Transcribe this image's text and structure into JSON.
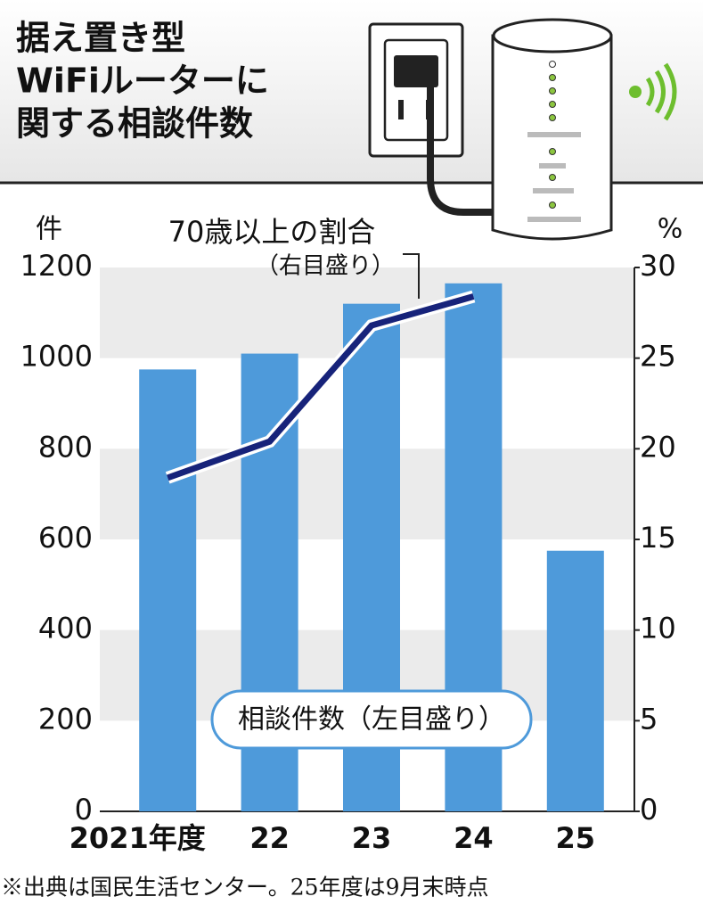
{
  "chart_data": {
    "type": "combo",
    "title": [
      "据え置き型",
      "WiFiルーターに",
      "関する相談件数"
    ],
    "y_unit": "件",
    "y2_unit": "%",
    "categories": [
      "2021年度",
      "22",
      "23",
      "24",
      "25"
    ],
    "series": [
      {
        "name": "相談件数（左目盛り）",
        "type": "bar",
        "color": "#4e9ada",
        "values": [
          975,
          1010,
          1120,
          1165,
          575
        ]
      },
      {
        "name": "70歳以上の割合",
        "type": "line",
        "axis": "y2",
        "color": "#17237a",
        "values": [
          18.4,
          20.4,
          26.8,
          28.4,
          null
        ]
      }
    ],
    "line_note": "（右目盛り）",
    "ylim": [
      0,
      1200
    ],
    "yticks": [
      0,
      200,
      400,
      600,
      800,
      1000,
      1200
    ],
    "y2lim": [
      0,
      30
    ],
    "y2ticks": [
      0,
      5,
      10,
      15,
      20,
      25,
      30
    ],
    "footnote": "※出典は国民生活センター。25年度は9月末時点"
  }
}
